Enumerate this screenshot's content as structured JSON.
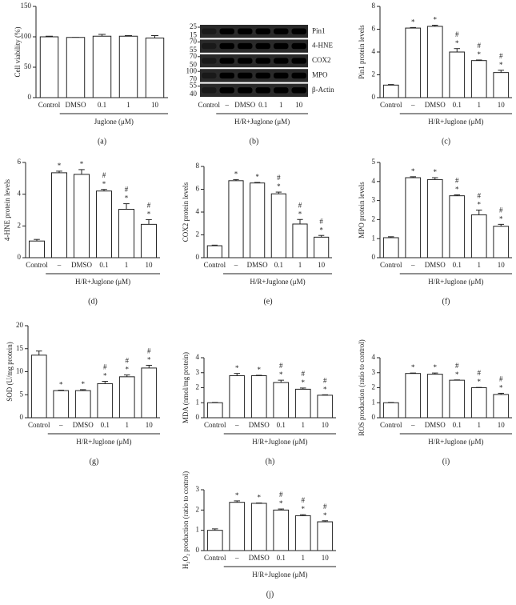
{
  "chart_data": [
    {
      "type": "bar",
      "caption": "(a)",
      "ylabel": "Cell viability (%)",
      "categories": [
        "Control",
        "DMSO",
        "0.1",
        "1",
        "10"
      ],
      "group_label": "Juglone (μM)",
      "values": [
        100,
        99,
        101,
        101,
        98
      ],
      "errors": [
        1,
        0,
        3,
        1,
        4
      ],
      "ylim": [
        0,
        150
      ],
      "yticks": [
        0,
        50,
        100,
        150
      ]
    },
    {
      "type": "blot",
      "caption": "(b)",
      "bands": [
        "Pin1",
        "4-HNE",
        "COX2",
        "MPO",
        "β-Actin"
      ],
      "markers": [
        [
          25,
          15
        ],
        [
          70,
          55
        ],
        [
          70,
          50
        ],
        [
          100,
          70
        ],
        [
          55,
          40
        ]
      ],
      "categories": [
        "Control",
        "–",
        "DMSO",
        "0.1",
        "1",
        "10"
      ],
      "group_label": "H/R+Juglone (μM)"
    },
    {
      "type": "bar",
      "caption": "(c)",
      "ylabel": "Pin1 protein levels",
      "categories": [
        "Control",
        "–",
        "DMSO",
        "0.1",
        "1",
        "10"
      ],
      "group_label": "H/R+Juglone (μM)",
      "values": [
        1.1,
        6.1,
        6.25,
        4.0,
        3.25,
        2.2
      ],
      "errors": [
        0.05,
        0.05,
        0.1,
        0.3,
        0.05,
        0.2
      ],
      "sig_star": [
        null,
        "*",
        "*",
        "*",
        "*",
        "*"
      ],
      "sig_hash": [
        null,
        null,
        null,
        "#",
        "#",
        "#"
      ],
      "ylim": [
        0,
        8
      ],
      "yticks": [
        0,
        2,
        4,
        6,
        8
      ]
    },
    {
      "type": "bar",
      "caption": "(d)",
      "ylabel": "4-HNE protein levels",
      "categories": [
        "Control",
        "–",
        "DMSO",
        "0.1",
        "1",
        "10"
      ],
      "group_label": "H/R+Juglone (μM)",
      "values": [
        1.05,
        5.35,
        5.25,
        4.2,
        3.05,
        2.1
      ],
      "errors": [
        0.1,
        0.1,
        0.3,
        0.1,
        0.35,
        0.3
      ],
      "sig_star": [
        null,
        "*",
        "*",
        "*",
        "*",
        "*"
      ],
      "sig_hash": [
        null,
        null,
        null,
        "#",
        "#",
        "#"
      ],
      "ylim": [
        0,
        6
      ],
      "yticks": [
        0,
        2,
        4,
        6
      ]
    },
    {
      "type": "bar",
      "caption": "(e)",
      "ylabel": "COX2 protein levels",
      "categories": [
        "Control",
        "–",
        "DMSO",
        "0.1",
        "1",
        "10"
      ],
      "group_label": "H/R+Juglone (μM)",
      "values": [
        1.05,
        6.75,
        6.55,
        5.6,
        2.95,
        1.8
      ],
      "errors": [
        0.05,
        0.1,
        0.05,
        0.15,
        0.4,
        0.15
      ],
      "sig_star": [
        null,
        "*",
        "*",
        "*",
        "*",
        "*"
      ],
      "sig_hash": [
        null,
        null,
        null,
        "#",
        "#",
        "#"
      ],
      "ylim": [
        0,
        8
      ],
      "yticks": [
        0,
        2,
        4,
        6,
        8
      ]
    },
    {
      "type": "bar",
      "caption": "(f)",
      "ylabel": "MPO protein levels",
      "categories": [
        "Control",
        "–",
        "DMSO",
        "0.1",
        "1",
        "10"
      ],
      "group_label": "H/R+Juglone (μM)",
      "values": [
        1.05,
        4.2,
        4.1,
        3.25,
        2.25,
        1.65
      ],
      "errors": [
        0.05,
        0.05,
        0.1,
        0.05,
        0.25,
        0.1
      ],
      "sig_star": [
        null,
        "*",
        "*",
        "*",
        "*",
        "*"
      ],
      "sig_hash": [
        null,
        null,
        null,
        "#",
        "#",
        "#"
      ],
      "ylim": [
        0,
        5
      ],
      "yticks": [
        0,
        1,
        2,
        3,
        4,
        5
      ]
    },
    {
      "type": "bar",
      "caption": "(g)",
      "ylabel": "SOD (U/mg protein)",
      "categories": [
        "Control",
        "–",
        "DMSO",
        "0.1",
        "1",
        "10"
      ],
      "group_label": "H/R+Juglone (μM)",
      "values": [
        13.6,
        5.9,
        5.9,
        7.4,
        8.9,
        10.8
      ],
      "errors": [
        0.9,
        0.1,
        0.2,
        0.5,
        0.4,
        0.6
      ],
      "sig_star": [
        null,
        "*",
        "*",
        "*",
        "*",
        "*"
      ],
      "sig_hash": [
        null,
        null,
        null,
        "#",
        "#",
        "#"
      ],
      "ylim": [
        0,
        20
      ],
      "yticks": [
        0,
        5,
        10,
        15,
        20
      ]
    },
    {
      "type": "bar",
      "caption": "(h)",
      "ylabel": "MDA (nmol/mg protein)",
      "categories": [
        "Control",
        "–",
        "DMSO",
        "0.1",
        "1",
        "10"
      ],
      "group_label": "H/R+Juglone (μM)",
      "values": [
        1.0,
        2.8,
        2.8,
        2.35,
        1.9,
        1.5
      ],
      "errors": [
        0.02,
        0.15,
        0.03,
        0.15,
        0.08,
        0.03
      ],
      "sig_star": [
        null,
        "*",
        "*",
        "*",
        "*",
        "*"
      ],
      "sig_hash": [
        null,
        null,
        null,
        "#",
        "#",
        "#"
      ],
      "ylim": [
        0,
        4
      ],
      "yticks": [
        0,
        1,
        2,
        3,
        4
      ]
    },
    {
      "type": "bar",
      "caption": "(i)",
      "ylabel": "ROS production (ratio to control)",
      "categories": [
        "Control",
        "–",
        "DMSO",
        "0.1",
        "1",
        "10"
      ],
      "group_label": "H/R+Juglone (μM)",
      "values": [
        1.0,
        2.95,
        2.9,
        2.5,
        2.0,
        1.55
      ],
      "errors": [
        0.02,
        0.03,
        0.08,
        0.02,
        0.02,
        0.08
      ],
      "sig_star": [
        null,
        "*",
        "*",
        "*",
        "*",
        "*"
      ],
      "sig_hash": [
        null,
        null,
        null,
        "#",
        "#",
        "#"
      ],
      "ylim": [
        0,
        4
      ],
      "yticks": [
        0,
        1,
        2,
        3,
        4
      ]
    },
    {
      "type": "bar",
      "caption": "(j)",
      "ylabel": "H₂O₂ production (ratio to control)",
      "categories": [
        "Control",
        "–",
        "DMSO",
        "0.1",
        "1",
        "10"
      ],
      "group_label": "H/R+Juglone (μM)",
      "values": [
        1.0,
        2.38,
        2.33,
        2.0,
        1.72,
        1.42
      ],
      "errors": [
        0.07,
        0.07,
        0.02,
        0.05,
        0.05,
        0.05
      ],
      "sig_star": [
        null,
        "*",
        "*",
        "*",
        "*",
        "*"
      ],
      "sig_hash": [
        null,
        null,
        null,
        "#",
        "#",
        "#"
      ],
      "ylim": [
        0,
        3
      ],
      "yticks": [
        0,
        1,
        2,
        3
      ]
    }
  ]
}
